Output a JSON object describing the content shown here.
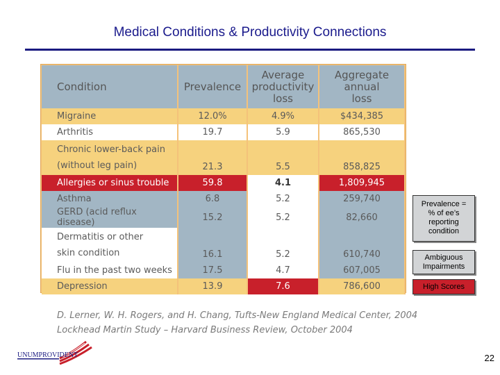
{
  "title": "Medical Conditions & Productivity Connections",
  "table": {
    "headers": [
      "Condition",
      "Prevalence",
      "Average productivity loss",
      "Aggregate annual loss"
    ],
    "headers_lines": {
      "h3": [
        "Average",
        "productivity",
        "loss"
      ],
      "h4": [
        "Aggregate",
        "annual",
        "loss"
      ]
    },
    "rows": [
      {
        "name": "Migraine",
        "prev": "12.0%",
        "avg": "4.9%",
        "agg": "$434,385"
      },
      {
        "name": "Arthritis",
        "prev": "19.7",
        "avg": "5.9",
        "agg": "865,530"
      },
      {
        "name_l1": "Chronic lower-back pain",
        "name_l2": "(without leg pain)",
        "prev": "21.3",
        "avg": "5.5",
        "agg": "858,825"
      },
      {
        "name": "Allergies or sinus trouble",
        "prev": "59.8",
        "avg": "4.1",
        "agg": "1,809,945"
      },
      {
        "name": "Asthma",
        "prev": "6.8",
        "avg": "5.2",
        "agg": "259,740"
      },
      {
        "name": "GERD (acid reflux disease)",
        "prev": "15.2",
        "avg": "5.2",
        "agg": "82,660"
      },
      {
        "name_l1": "Dermatitis or other",
        "name_l2": "skin condition",
        "prev": "16.1",
        "avg": "5.2",
        "agg": "610,740"
      },
      {
        "name": "Flu in the past two weeks",
        "prev": "17.5",
        "avg": "4.7",
        "agg": "607,005"
      },
      {
        "name": "Depression",
        "prev": "13.9",
        "avg": "7.6",
        "agg": "786,600"
      }
    ]
  },
  "citation": {
    "line1": "D. Lerner, W. H. Rogers, and H. Chang, Tufts-New England Medical Center, 2004",
    "line2": "Lockhead Martin Study – Harvard  Business Review, October 2004"
  },
  "notes": {
    "prevalence": [
      "Prevalence =",
      "% of ee’s",
      "reporting",
      "condition"
    ],
    "ambiguous": [
      "Ambiguous",
      "Impairments"
    ],
    "high_scores": "High Scores"
  },
  "logo_text": "UNUMPROVIDENT",
  "page_number": "22",
  "colors": {
    "title": "#1a1a8c",
    "header_bg": "#a2b6c4",
    "highlight_yellow": "#f6d27e",
    "highlight_red": "#c8202b",
    "note_gray": "#d2d4d6"
  }
}
